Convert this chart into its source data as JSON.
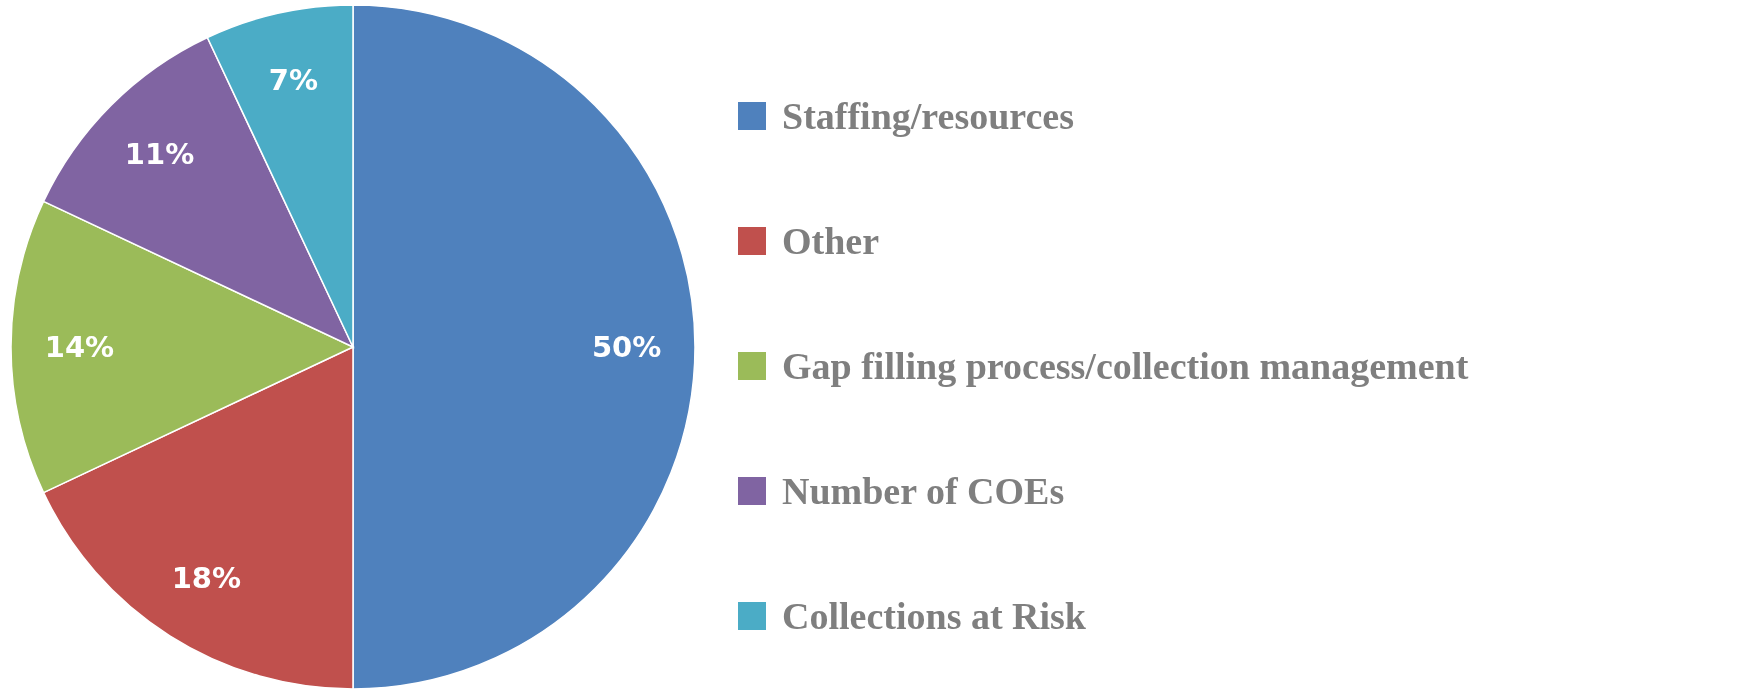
{
  "chart_data": {
    "type": "pie",
    "categories": [
      "Staffing/resources",
      "Other",
      "Gap filling process/collection management",
      "Number of COEs",
      "Collections at Risk"
    ],
    "values": [
      50,
      18,
      14,
      11,
      7
    ],
    "colors": [
      "#4f81bd",
      "#c0504d",
      "#9bbb59",
      "#8064a2",
      "#4bacc6"
    ],
    "value_labels": [
      "50%",
      "18%",
      "14%",
      "11%",
      "7%"
    ],
    "legend": "right"
  }
}
